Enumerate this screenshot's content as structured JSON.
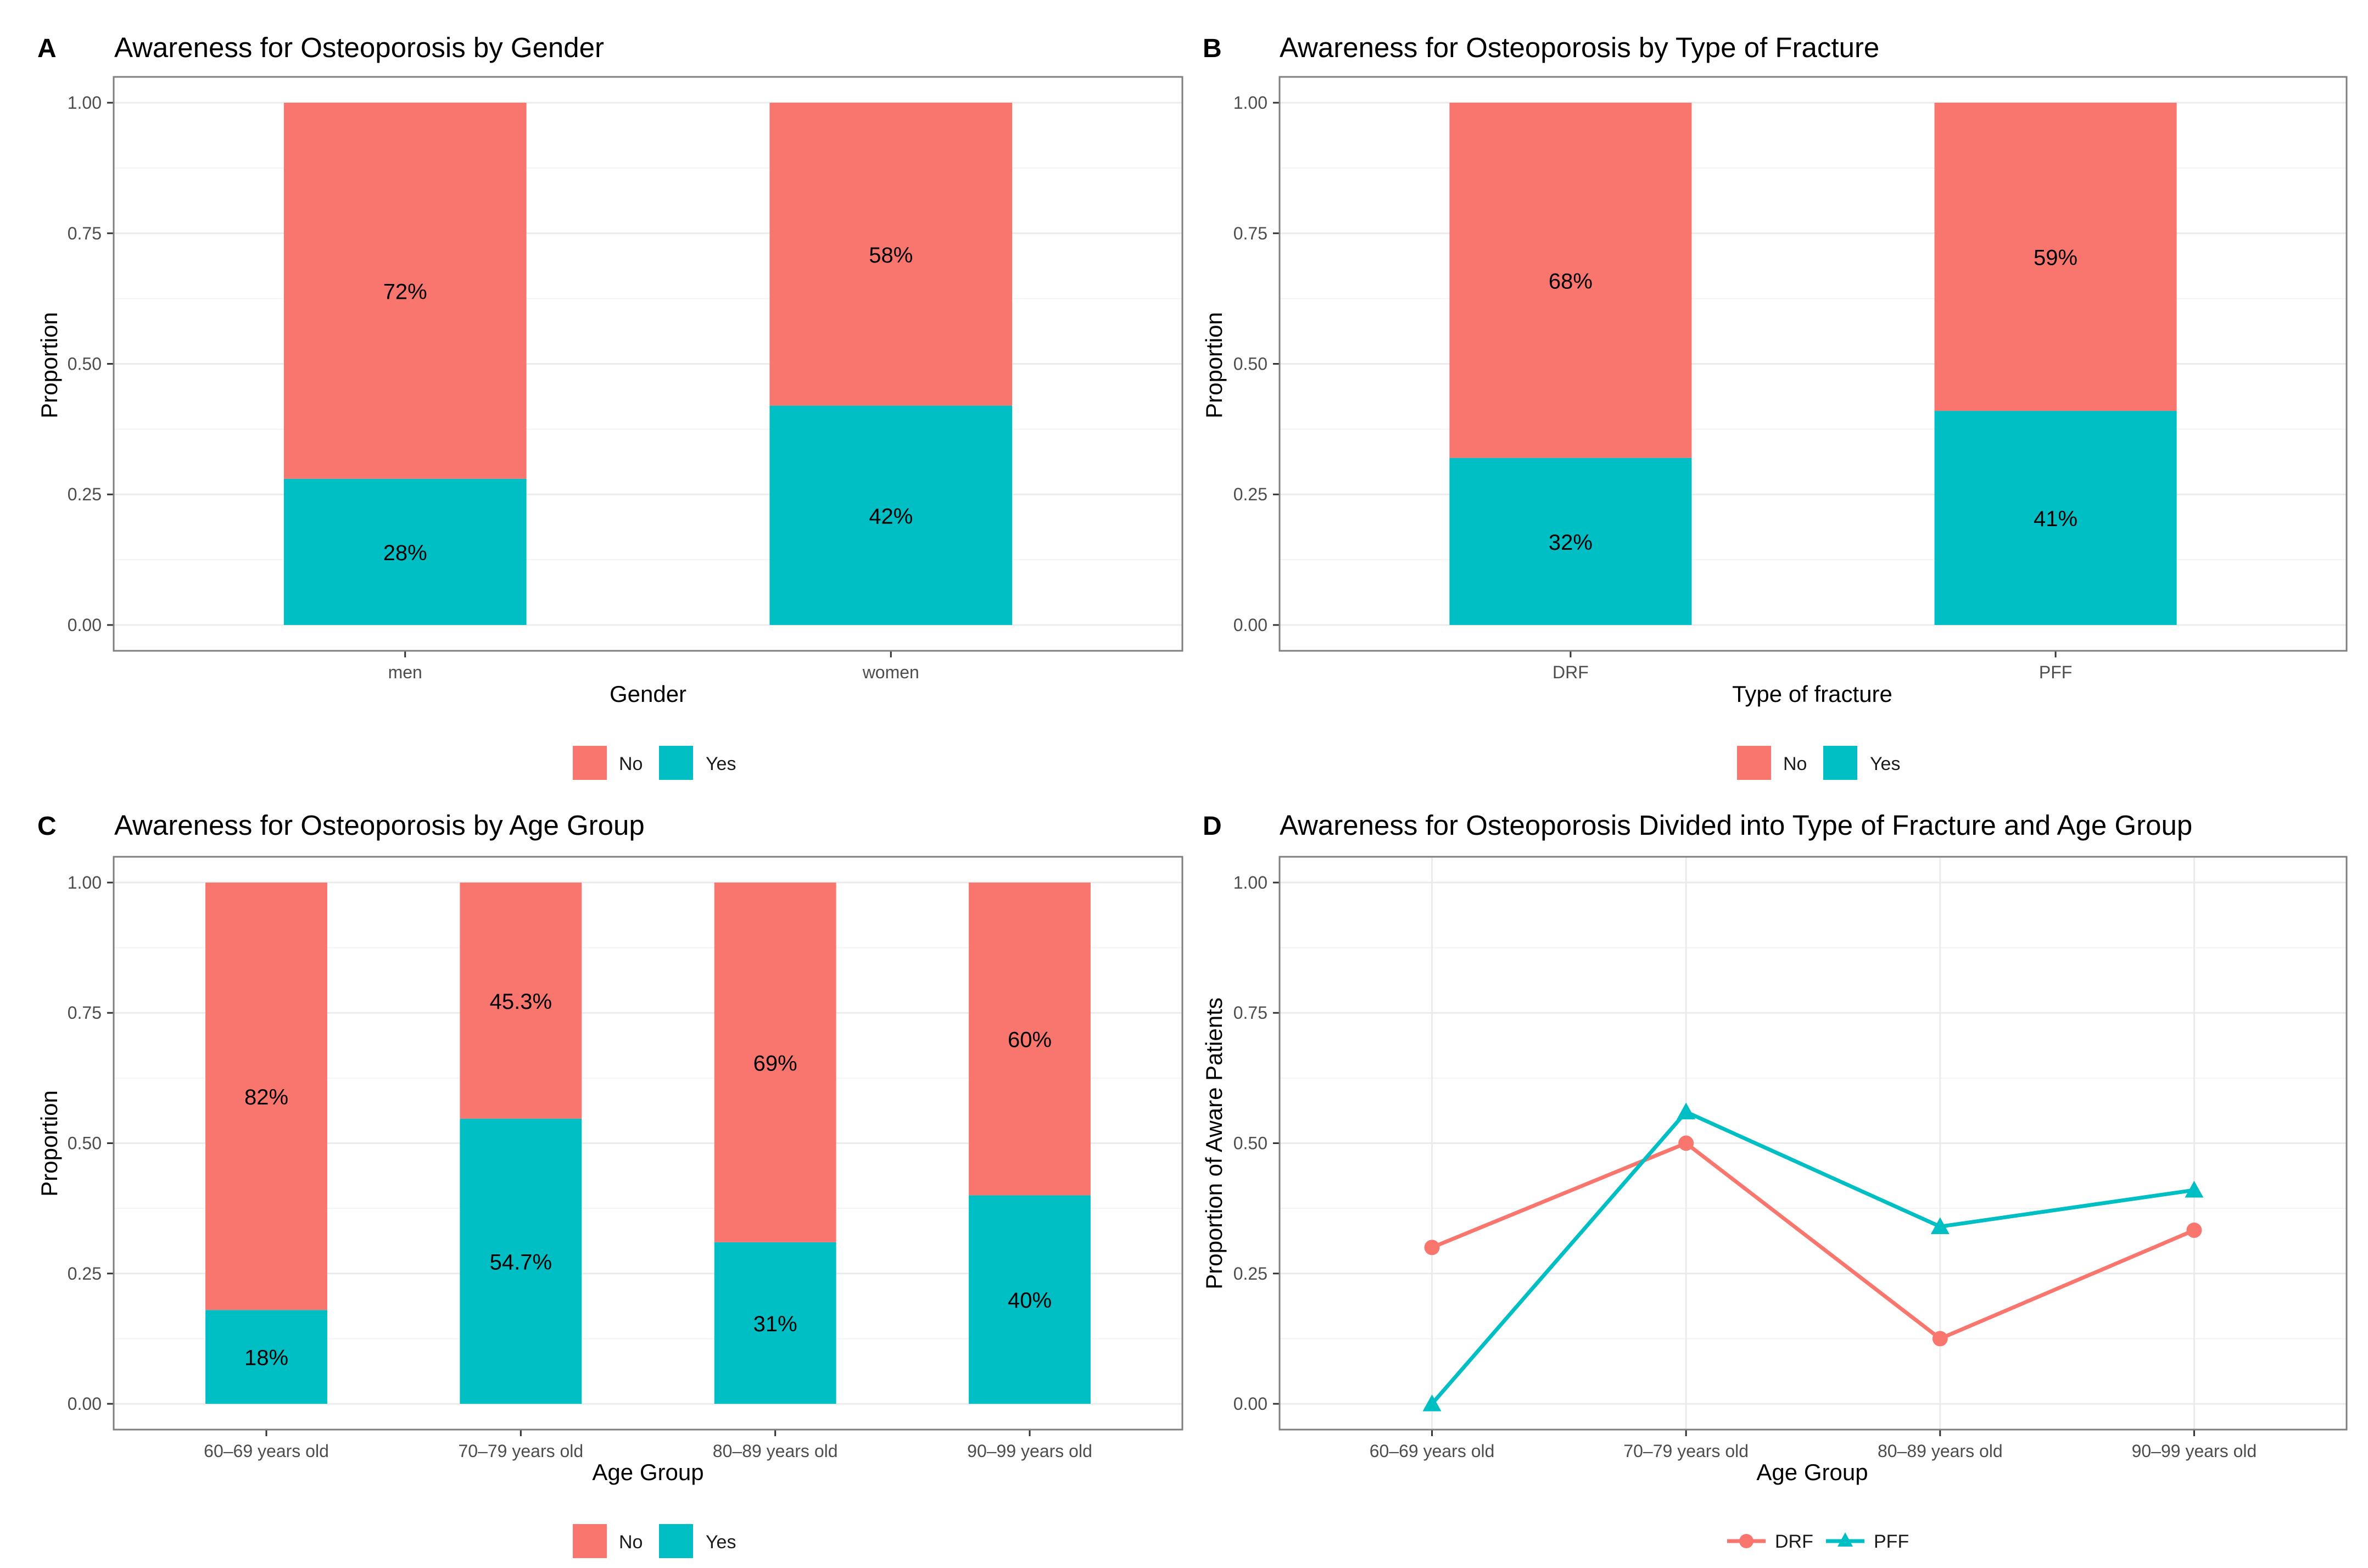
{
  "colors": {
    "no": "#F8766D",
    "yes": "#00BFC4",
    "grid_major": "#EBEBEB",
    "grid_minor": "#F4F4F4",
    "panel_border": "#7F7F7F",
    "tick_text": "#4D4D4D",
    "text": "#1A1A1A"
  },
  "chart_data": [
    {
      "panel": "A",
      "type": "bar",
      "stacked": true,
      "title": "Awareness for Osteoporosis by Gender",
      "xlabel": "Gender",
      "ylabel": "Proportion",
      "ylim": [
        0,
        1
      ],
      "yticks": [
        "0.00",
        "0.25",
        "0.50",
        "0.75",
        "1.00"
      ],
      "categories": [
        "men",
        "women"
      ],
      "series": [
        {
          "name": "Yes",
          "values": [
            0.28,
            0.42
          ],
          "labels": [
            "28%",
            "42%"
          ]
        },
        {
          "name": "No",
          "values": [
            0.72,
            0.58
          ],
          "labels": [
            "72%",
            "58%"
          ]
        }
      ],
      "legend": [
        "No",
        "Yes"
      ],
      "legend_position": "bottom"
    },
    {
      "panel": "B",
      "type": "bar",
      "stacked": true,
      "title": "Awareness for Osteoporosis by Type of Fracture",
      "xlabel": "Type of fracture",
      "ylabel": "Proportion",
      "ylim": [
        0,
        1
      ],
      "yticks": [
        "0.00",
        "0.25",
        "0.50",
        "0.75",
        "1.00"
      ],
      "categories": [
        "DRF",
        "PFF"
      ],
      "series": [
        {
          "name": "Yes",
          "values": [
            0.32,
            0.41
          ],
          "labels": [
            "32%",
            "41%"
          ]
        },
        {
          "name": "No",
          "values": [
            0.68,
            0.59
          ],
          "labels": [
            "68%",
            "59%"
          ]
        }
      ],
      "legend": [
        "No",
        "Yes"
      ],
      "legend_position": "bottom"
    },
    {
      "panel": "C",
      "type": "bar",
      "stacked": true,
      "title": "Awareness for Osteoporosis by Age Group",
      "xlabel": "Age Group",
      "ylabel": "Proportion",
      "ylim": [
        0,
        1
      ],
      "yticks": [
        "0.00",
        "0.25",
        "0.50",
        "0.75",
        "1.00"
      ],
      "categories": [
        "60–69 years old",
        "70–79 years old",
        "80–89 years old",
        "90–99 years old"
      ],
      "series": [
        {
          "name": "Yes",
          "values": [
            0.18,
            0.547,
            0.31,
            0.4
          ],
          "labels": [
            "18%",
            "54.7%",
            "31%",
            "40%"
          ]
        },
        {
          "name": "No",
          "values": [
            0.82,
            0.453,
            0.69,
            0.6
          ],
          "labels": [
            "82%",
            "45.3%",
            "69%",
            "60%"
          ]
        }
      ],
      "legend": [
        "No",
        "Yes"
      ],
      "legend_position": "bottom"
    },
    {
      "panel": "D",
      "type": "line",
      "title": "Awareness for Osteoporosis Divided into Type of Fracture and Age Group",
      "xlabel": "Age Group",
      "ylabel": "Proportion of Aware Patients",
      "ylim": [
        0,
        1
      ],
      "yticks": [
        "0.00",
        "0.25",
        "0.50",
        "0.75",
        "1.00"
      ],
      "categories": [
        "60–69 years old",
        "70–79 years old",
        "80–89 years old",
        "90–99 years old"
      ],
      "series": [
        {
          "name": "DRF",
          "marker": "circle",
          "values": [
            0.3,
            0.5,
            0.125,
            0.333
          ]
        },
        {
          "name": "PFF",
          "marker": "triangle",
          "values": [
            0.0,
            0.56,
            0.34,
            0.41
          ]
        }
      ],
      "legend": [
        "DRF",
        "PFF"
      ],
      "legend_position": "bottom"
    }
  ]
}
